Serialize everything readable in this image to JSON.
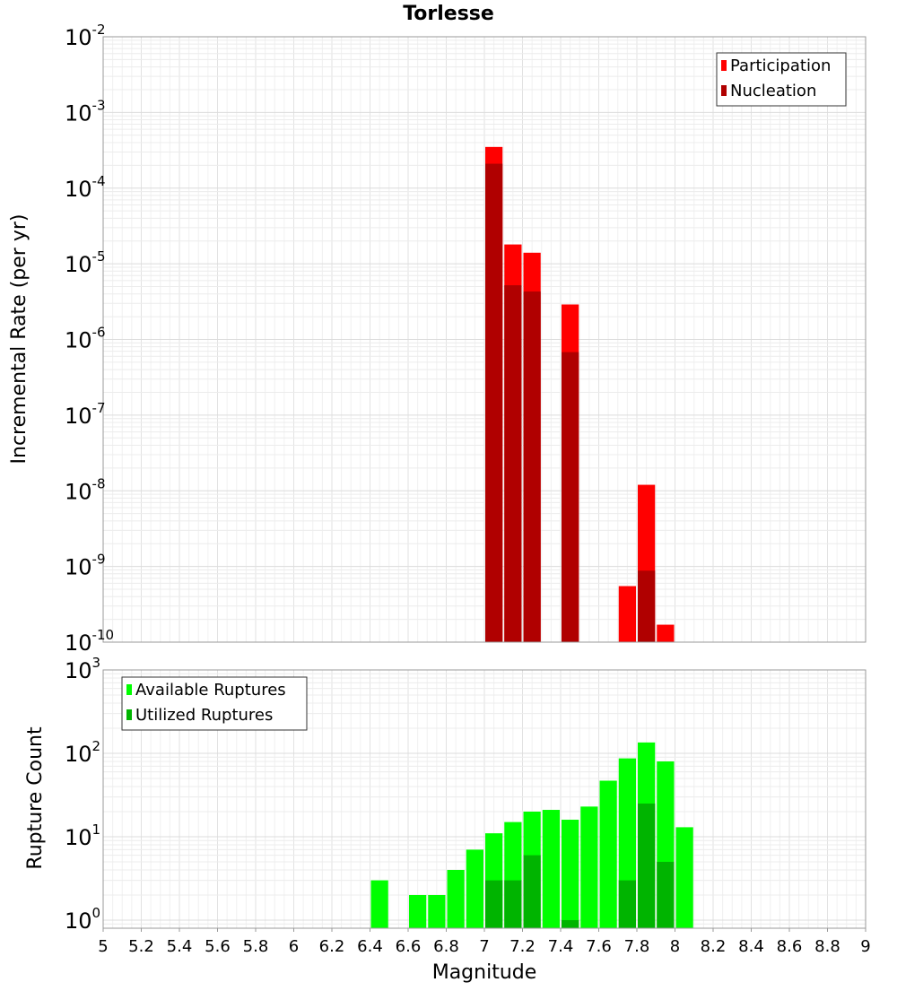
{
  "chart_data": [
    {
      "type": "bar",
      "title": "Torlesse",
      "ylabel": "Incremental Rate (per yr)",
      "xlabel": "",
      "xlim": [
        5,
        9
      ],
      "y_scale": "log",
      "ylim": [
        1e-10,
        0.01
      ],
      "bar_width": 0.1,
      "grid": true,
      "legend_position": "top-right",
      "y_ticks": [
        {
          "base": "10",
          "exp": "-2",
          "value": 0.01
        },
        {
          "base": "10",
          "exp": "-3",
          "value": 0.001
        },
        {
          "base": "10",
          "exp": "-4",
          "value": 0.0001
        },
        {
          "base": "10",
          "exp": "-5",
          "value": 1e-05
        },
        {
          "base": "10",
          "exp": "-6",
          "value": 1e-06
        },
        {
          "base": "10",
          "exp": "-7",
          "value": 1e-07
        },
        {
          "base": "10",
          "exp": "-8",
          "value": 1e-08
        },
        {
          "base": "10",
          "exp": "-9",
          "value": 1e-09
        },
        {
          "base": "10",
          "exp": "-10",
          "value": 1e-10
        }
      ],
      "series": [
        {
          "name": "Participation",
          "color": "#ff0000",
          "points": [
            {
              "x": 7.05,
              "y": 0.00035
            },
            {
              "x": 7.15,
              "y": 1.8e-05
            },
            {
              "x": 7.25,
              "y": 1.4e-05
            },
            {
              "x": 7.45,
              "y": 2.9e-06
            },
            {
              "x": 7.75,
              "y": 5.5e-10
            },
            {
              "x": 7.85,
              "y": 1.2e-08
            },
            {
              "x": 7.95,
              "y": 1.7e-10
            }
          ]
        },
        {
          "name": "Nucleation",
          "color": "#b00000",
          "points": [
            {
              "x": 7.05,
              "y": 0.00021
            },
            {
              "x": 7.15,
              "y": 5.2e-06
            },
            {
              "x": 7.25,
              "y": 4.3e-06
            },
            {
              "x": 7.45,
              "y": 6.8e-07
            },
            {
              "x": 7.85,
              "y": 8.8e-10
            }
          ]
        }
      ]
    },
    {
      "type": "bar",
      "title": "",
      "ylabel": "Rupture Count",
      "xlabel": "Magnitude",
      "xlim": [
        5,
        9
      ],
      "y_scale": "log",
      "ylim": [
        0.8,
        1000
      ],
      "bar_width": 0.1,
      "grid": true,
      "legend_position": "top-left",
      "x_ticks": [
        "5",
        "5.2",
        "5.4",
        "5.6",
        "5.8",
        "6",
        "6.2",
        "6.4",
        "6.6",
        "6.8",
        "7",
        "7.2",
        "7.4",
        "7.6",
        "7.8",
        "8",
        "8.2",
        "8.4",
        "8.6",
        "8.8",
        "9"
      ],
      "y_ticks": [
        {
          "base": "10",
          "exp": "3",
          "value": 1000
        },
        {
          "base": "10",
          "exp": "2",
          "value": 100
        },
        {
          "base": "10",
          "exp": "1",
          "value": 10
        },
        {
          "base": "10",
          "exp": "0",
          "value": 1
        }
      ],
      "series": [
        {
          "name": "Available Ruptures",
          "color": "#00ff00",
          "points": [
            {
              "x": 6.45,
              "y": 3
            },
            {
              "x": 6.65,
              "y": 2
            },
            {
              "x": 6.75,
              "y": 2
            },
            {
              "x": 6.85,
              "y": 4
            },
            {
              "x": 6.95,
              "y": 7
            },
            {
              "x": 7.05,
              "y": 11
            },
            {
              "x": 7.15,
              "y": 15
            },
            {
              "x": 7.25,
              "y": 20
            },
            {
              "x": 7.35,
              "y": 21
            },
            {
              "x": 7.45,
              "y": 16
            },
            {
              "x": 7.55,
              "y": 23
            },
            {
              "x": 7.65,
              "y": 47
            },
            {
              "x": 7.75,
              "y": 87
            },
            {
              "x": 7.85,
              "y": 135
            },
            {
              "x": 7.95,
              "y": 80
            },
            {
              "x": 8.05,
              "y": 13
            }
          ]
        },
        {
          "name": "Utilized Ruptures",
          "color": "#00b400",
          "points": [
            {
              "x": 7.05,
              "y": 3
            },
            {
              "x": 7.15,
              "y": 3
            },
            {
              "x": 7.25,
              "y": 6
            },
            {
              "x": 7.45,
              "y": 1
            },
            {
              "x": 7.75,
              "y": 3
            },
            {
              "x": 7.85,
              "y": 25
            },
            {
              "x": 7.95,
              "y": 5
            }
          ]
        }
      ]
    }
  ]
}
